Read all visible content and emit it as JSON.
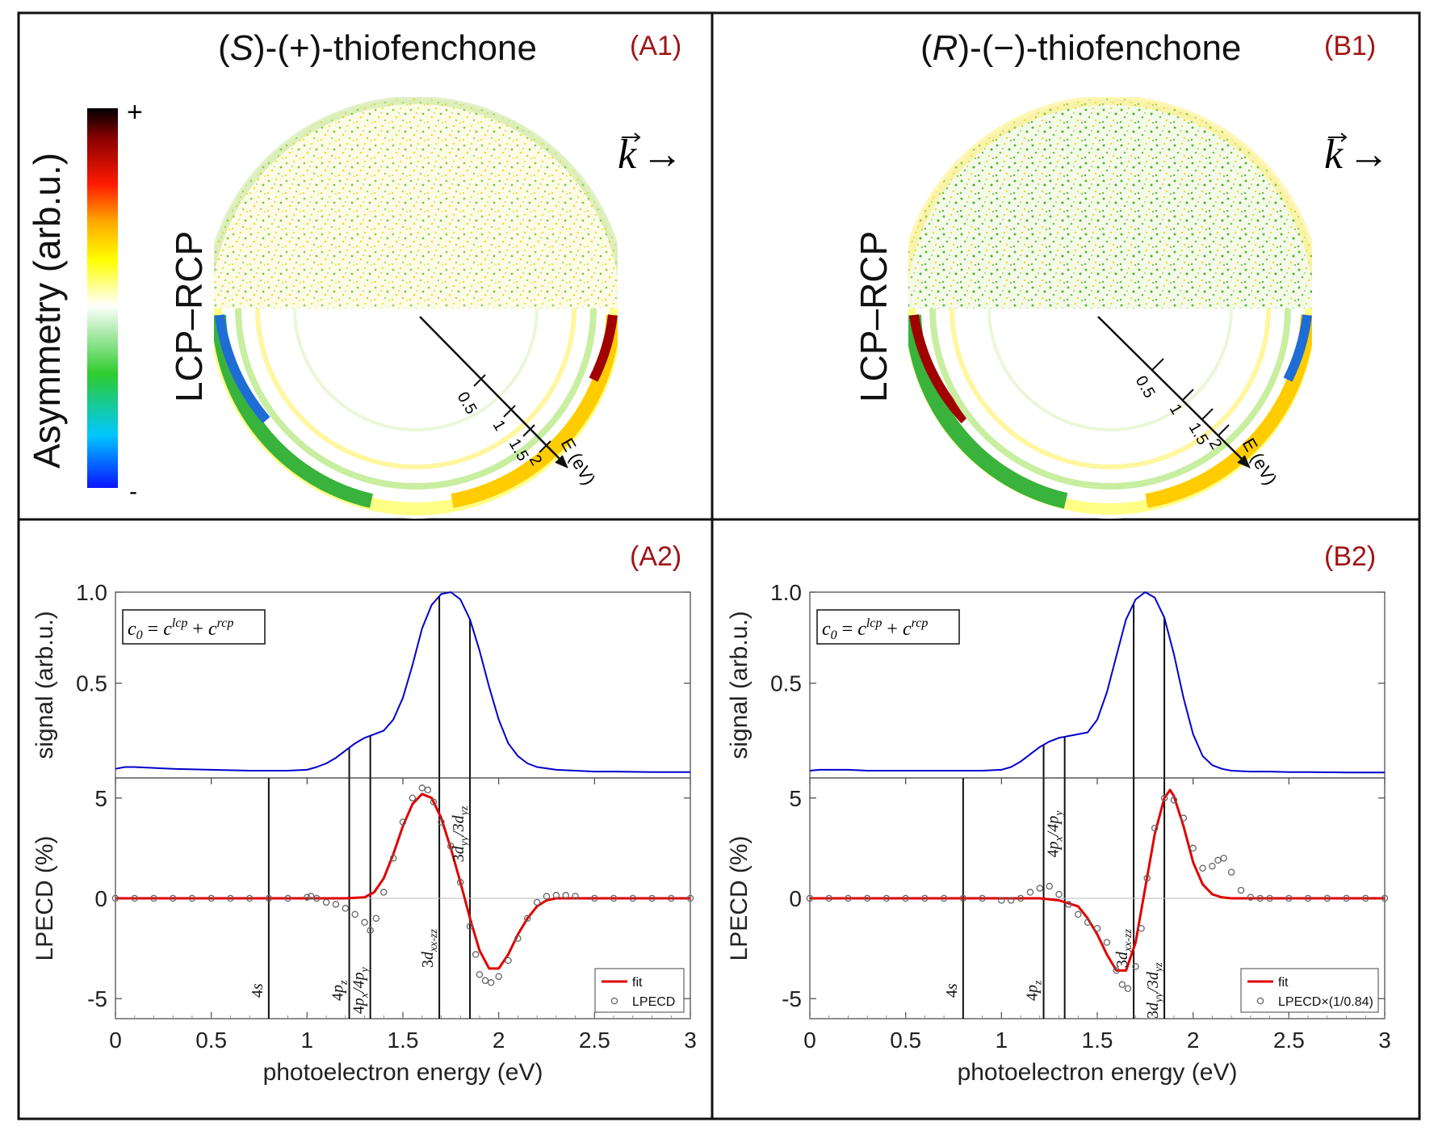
{
  "panels": {
    "a1": {
      "label": "(A1)",
      "title": {
        "prefix": "(",
        "italic": "S",
        "suffix": ")-(+)-thiofenchone"
      },
      "ylabel": "LCP–RCP"
    },
    "b1": {
      "label": "(B1)",
      "title": {
        "prefix": "(",
        "italic": "R",
        "suffix": ")-(−)-thiofenchone"
      },
      "ylabel": "LCP–RCP"
    },
    "a2": {
      "label": "(A2)"
    },
    "b2": {
      "label": "(B2)"
    }
  },
  "colorbar": {
    "label": "Asymmetry (arb.u.)",
    "plus": "+",
    "minus": "-",
    "colors": [
      "#0a14ff",
      "#00c8ff",
      "#2ecc2e",
      "#ffffff",
      "#ffff00",
      "#ffaa00",
      "#ff1a00",
      "#8b0000",
      "#000000"
    ]
  },
  "k_label": {
    "letter": "k",
    "arrow": "→"
  },
  "energy_axis": {
    "ticks": [
      "0.5",
      "1",
      "1.5",
      "2"
    ],
    "label": "E (eV)"
  },
  "formula": {
    "lhs": "c",
    "sub": "0",
    "eq": " = ",
    "t1": "c",
    "t1sup": "lcp",
    "plus": " + ",
    "t2": "c",
    "t2sup": "rcp"
  },
  "chart_data": [
    {
      "panel": "A2-top",
      "type": "line",
      "ylabel": "signal (arb.u.)",
      "xlim": [
        0,
        3
      ],
      "ylim": [
        0,
        1.0
      ],
      "yticks": [
        "0.5",
        "1.0"
      ],
      "series": [
        {
          "name": "c0",
          "color": "#0000cc",
          "x": [
            0,
            0.05,
            0.1,
            0.2,
            0.3,
            0.5,
            0.7,
            0.9,
            1.0,
            1.05,
            1.1,
            1.15,
            1.2,
            1.25,
            1.3,
            1.35,
            1.4,
            1.45,
            1.5,
            1.55,
            1.6,
            1.65,
            1.7,
            1.75,
            1.8,
            1.85,
            1.9,
            1.95,
            2.0,
            2.05,
            2.1,
            2.15,
            2.2,
            2.3,
            2.4,
            2.5,
            2.6,
            2.8,
            3.0
          ],
          "y": [
            0.03,
            0.04,
            0.04,
            0.035,
            0.03,
            0.025,
            0.02,
            0.02,
            0.025,
            0.04,
            0.06,
            0.09,
            0.13,
            0.17,
            0.2,
            0.22,
            0.24,
            0.3,
            0.42,
            0.6,
            0.8,
            0.93,
            0.99,
            1.0,
            0.96,
            0.85,
            0.68,
            0.48,
            0.3,
            0.17,
            0.1,
            0.06,
            0.04,
            0.025,
            0.02,
            0.015,
            0.015,
            0.012,
            0.012
          ]
        }
      ],
      "vlines": [
        1.22,
        1.33,
        1.69,
        1.85
      ]
    },
    {
      "panel": "A2-bottom",
      "type": "line",
      "xlabel": "photoelectron energy (eV)",
      "ylabel": "LPECD (%)",
      "xlim": [
        0,
        3
      ],
      "ylim": [
        -6,
        6
      ],
      "xticks": [
        "0",
        "0.5",
        "1",
        "1.5",
        "2",
        "2.5",
        "3"
      ],
      "yticks": [
        "-5",
        "0",
        "5"
      ],
      "series": [
        {
          "name": "fit",
          "color": "#e00000",
          "x": [
            0,
            0.5,
            1.0,
            1.2,
            1.3,
            1.35,
            1.4,
            1.45,
            1.5,
            1.55,
            1.6,
            1.65,
            1.7,
            1.75,
            1.8,
            1.85,
            1.9,
            1.95,
            2.0,
            2.05,
            2.1,
            2.15,
            2.2,
            2.25,
            2.3,
            2.5,
            3.0
          ],
          "y": [
            0,
            0,
            0,
            0,
            0.05,
            0.3,
            1.0,
            2.2,
            3.6,
            4.7,
            5.2,
            5.0,
            4.0,
            2.5,
            0.8,
            -1.0,
            -2.6,
            -3.5,
            -3.5,
            -2.8,
            -1.8,
            -1.0,
            -0.4,
            -0.1,
            0,
            0,
            0
          ]
        },
        {
          "name": "LPECD",
          "color": "#666666",
          "x": [
            0,
            0.1,
            0.2,
            0.3,
            0.4,
            0.5,
            0.6,
            0.7,
            0.8,
            0.9,
            1.0,
            1.02,
            1.05,
            1.1,
            1.15,
            1.2,
            1.25,
            1.3,
            1.33,
            1.36,
            1.4,
            1.45,
            1.5,
            1.55,
            1.6,
            1.63,
            1.66,
            1.7,
            1.75,
            1.8,
            1.85,
            1.88,
            1.9,
            1.93,
            1.96,
            2.0,
            2.05,
            2.1,
            2.15,
            2.2,
            2.25,
            2.3,
            2.35,
            2.4,
            2.5,
            2.6,
            2.7,
            2.8,
            2.9,
            3.0
          ],
          "y": [
            0,
            0,
            0,
            0,
            0,
            0,
            0,
            0,
            0,
            0,
            0.05,
            0.1,
            0,
            -0.2,
            -0.3,
            -0.5,
            -0.8,
            -1.2,
            -1.6,
            -1.0,
            0.3,
            2.0,
            3.8,
            5.0,
            5.5,
            5.4,
            4.8,
            3.8,
            2.6,
            0.8,
            -1.4,
            -2.8,
            -3.8,
            -4.1,
            -4.2,
            -3.9,
            -3.1,
            -2.0,
            -1.0,
            -0.2,
            0.1,
            0.15,
            0.15,
            0.1,
            0,
            0,
            0,
            0,
            0,
            0
          ]
        }
      ],
      "vlines": [
        0.8,
        1.22,
        1.33,
        1.69,
        1.85
      ],
      "vline_labels": [
        {
          "x": 0.8,
          "main": "4",
          "it": "s",
          "sub": ""
        },
        {
          "x": 1.22,
          "main": "4",
          "it": "p",
          "sub": "z"
        },
        {
          "x": 1.33,
          "main": "4",
          "it": "p",
          "sub": "x",
          "extra": "/4p",
          "extrasub": "y"
        },
        {
          "x": 1.69,
          "main": "3",
          "it": "d",
          "sub": "xx-zz"
        },
        {
          "x": 1.85,
          "main": "3",
          "it": "d",
          "sub": "yy",
          "extra": "/3d",
          "extrasub": "yz"
        }
      ],
      "legend": [
        {
          "name": "fit"
        },
        {
          "name": "LPECD"
        }
      ]
    },
    {
      "panel": "B2-top",
      "type": "line",
      "ylabel": "signal (arb.u.)",
      "xlim": [
        0,
        3
      ],
      "ylim": [
        0,
        1.0
      ],
      "yticks": [
        "0.5",
        "1.0"
      ],
      "series": [
        {
          "name": "c0",
          "color": "#0000cc",
          "x": [
            0,
            0.05,
            0.1,
            0.2,
            0.3,
            0.5,
            0.7,
            0.9,
            1.0,
            1.05,
            1.1,
            1.15,
            1.2,
            1.25,
            1.3,
            1.35,
            1.4,
            1.45,
            1.5,
            1.55,
            1.6,
            1.65,
            1.7,
            1.75,
            1.8,
            1.85,
            1.9,
            1.95,
            2.0,
            2.05,
            2.1,
            2.15,
            2.2,
            2.3,
            2.4,
            2.5,
            2.6,
            2.8,
            3.0
          ],
          "y": [
            0.02,
            0.025,
            0.025,
            0.025,
            0.02,
            0.02,
            0.02,
            0.02,
            0.025,
            0.04,
            0.07,
            0.11,
            0.15,
            0.18,
            0.2,
            0.21,
            0.22,
            0.23,
            0.3,
            0.45,
            0.65,
            0.85,
            0.96,
            1.0,
            0.97,
            0.86,
            0.66,
            0.42,
            0.22,
            0.1,
            0.05,
            0.03,
            0.02,
            0.015,
            0.015,
            0.012,
            0.012,
            0.01,
            0.01
          ]
        }
      ],
      "vlines": [
        1.22,
        1.33,
        1.69,
        1.85
      ]
    },
    {
      "panel": "B2-bottom",
      "type": "line",
      "xlabel": "photoelectron energy (eV)",
      "ylabel": "LPECD (%)",
      "xlim": [
        0,
        3
      ],
      "ylim": [
        -6,
        6
      ],
      "xticks": [
        "0",
        "0.5",
        "1",
        "1.5",
        "2",
        "2.5",
        "3"
      ],
      "yticks": [
        "-5",
        "0",
        "5"
      ],
      "series": [
        {
          "name": "fit",
          "color": "#e00000",
          "x": [
            0,
            0.5,
            1.0,
            1.2,
            1.3,
            1.4,
            1.45,
            1.5,
            1.55,
            1.6,
            1.65,
            1.7,
            1.75,
            1.8,
            1.85,
            1.88,
            1.9,
            1.95,
            2.0,
            2.05,
            2.1,
            2.15,
            2.2,
            2.3,
            2.5,
            3.0
          ],
          "y": [
            0,
            0,
            0,
            0,
            -0.1,
            -0.4,
            -1.0,
            -1.8,
            -2.8,
            -3.6,
            -3.6,
            -2.2,
            0.5,
            3.2,
            5.0,
            5.4,
            5.1,
            3.6,
            1.8,
            0.7,
            0.2,
            0.05,
            0,
            0,
            0,
            0
          ]
        },
        {
          "name": "LPECD×(1/0.84)",
          "color": "#666666",
          "x": [
            0,
            0.1,
            0.2,
            0.3,
            0.4,
            0.5,
            0.6,
            0.7,
            0.8,
            0.9,
            1.0,
            1.05,
            1.1,
            1.15,
            1.2,
            1.25,
            1.3,
            1.35,
            1.4,
            1.45,
            1.5,
            1.55,
            1.6,
            1.63,
            1.66,
            1.7,
            1.73,
            1.76,
            1.8,
            1.85,
            1.9,
            1.95,
            2.0,
            2.05,
            2.1,
            2.13,
            2.16,
            2.2,
            2.25,
            2.3,
            2.35,
            2.4,
            2.5,
            2.6,
            2.7,
            2.8,
            2.9,
            3.0
          ],
          "y": [
            0,
            0,
            0,
            0,
            0,
            0,
            0,
            0,
            0,
            0,
            -0.1,
            -0.1,
            0,
            0.3,
            0.5,
            0.6,
            0.2,
            -0.3,
            -0.8,
            -1.2,
            -1.5,
            -2.2,
            -3.6,
            -4.3,
            -4.5,
            -3.4,
            -1.5,
            1.0,
            3.5,
            5.0,
            4.9,
            4.0,
            2.5,
            1.5,
            1.6,
            1.9,
            2.0,
            1.3,
            0.4,
            0.05,
            0,
            0,
            0,
            0,
            0,
            0,
            0,
            0
          ]
        }
      ],
      "vlines": [
        0.8,
        1.22,
        1.33,
        1.69,
        1.85
      ],
      "vline_labels": [
        {
          "x": 0.8,
          "main": "4",
          "it": "s",
          "sub": ""
        },
        {
          "x": 1.22,
          "main": "4",
          "it": "p",
          "sub": "z"
        },
        {
          "x": 1.33,
          "main": "4",
          "it": "p",
          "sub": "x",
          "extra": "/4p",
          "extrasub": "y"
        },
        {
          "x": 1.69,
          "main": "3",
          "it": "d",
          "sub": "xx-zz"
        },
        {
          "x": 1.85,
          "main": "3",
          "it": "d",
          "sub": "yy",
          "extra": "/3d",
          "extrasub": "yz"
        }
      ],
      "legend": [
        {
          "name": "fit"
        },
        {
          "name": "LPECD×(1/0.84)"
        }
      ]
    }
  ]
}
